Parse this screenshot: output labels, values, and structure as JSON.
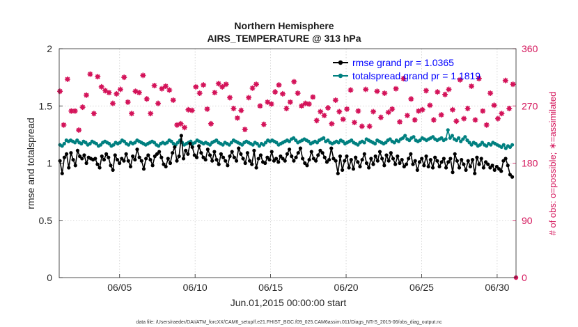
{
  "chart_data": {
    "type": "line",
    "title": "Northern Hemisphere",
    "subtitle": "AIRS_TEMPERATURE @ 313 hPa",
    "xlabel": "Jun.01,2015 00:00:00 start",
    "ylabel": "rmse and totalspread",
    "ylabel_right": "# of obs: o=possible; ∗=assimilated",
    "xlim": [
      1,
      31.25
    ],
    "ylim": [
      0,
      2
    ],
    "ylim_right": [
      0,
      360
    ],
    "x_ticks": [
      5,
      10,
      15,
      20,
      25,
      30
    ],
    "x_tick_labels": [
      "06/05",
      "06/10",
      "06/15",
      "06/20",
      "06/25",
      "06/30"
    ],
    "y_ticks": [
      "0",
      "0.5",
      "1",
      "1.5",
      "2"
    ],
    "y_ticks_right": [
      "0",
      "90",
      "180",
      "270",
      "360"
    ],
    "grid": "dotted",
    "legend_position": "top-right",
    "footnote": "data file: /Users/raeder/DAI/ATM_forcXX/CAM6_setup/f.e21.FHIST_BGC.f09_025.CAM6assim.011/Diags_NTrS_2015-06/obs_diag_output.nc",
    "series": [
      {
        "name": "rmse grand pr = 1.0365",
        "color": "#000000",
        "marker": "circle",
        "axis": "left",
        "values": [
          1.02,
          0.91,
          1.05,
          1.08,
          0.96,
          1.09,
          1.03,
          0.98,
          1.11,
          1.06,
          1.04,
          1.07,
          1.0,
          1.05,
          1.04,
          1.03,
          1.04,
          0.99,
          0.96,
          1.06,
          1.03,
          1.08,
          1.05,
          0.98,
          0.94,
          1.07,
          1.03,
          1.0,
          1.04,
          1.02,
          1.08,
          1.02,
          0.97,
          1.06,
          1.03,
          1.12,
          1.05,
          1.02,
          0.95,
          1.04,
          1.07,
          1.03,
          0.98,
          1.06,
          1.08,
          1.1,
          1.05,
          0.99,
          0.97,
          1.04,
          1.0,
          1.09,
          1.14,
          1.02,
          1.06,
          1.24,
          1.04,
          1.11,
          1.08,
          1.17,
          1.14,
          1.07,
          1.05,
          1.15,
          1.09,
          1.05,
          1.03,
          1.12,
          1.07,
          1.02,
          1.1,
          1.03,
          0.99,
          1.08,
          1.05,
          1.02,
          0.98,
          1.06,
          1.1,
          1.05,
          1.02,
          1.13,
          1.08,
          1.04,
          1.0,
          1.09,
          1.02,
          0.99,
          1.11,
          0.96,
          1.04,
          1.07,
          1.01,
          1.0,
          1.05,
          1.03,
          1.1,
          1.02,
          1.04,
          1.01,
          1.06,
          1.04,
          1.02,
          1.08,
          1.12,
          1.06,
          1.02,
          1.05,
          1.09,
          1.13,
          1.04,
          1.0,
          0.98,
          1.03,
          1.1,
          1.04,
          1.02,
          1.07,
          1.11,
          1.09,
          1.05,
          1.01,
          1.03,
          1.13,
          1.04,
          1.02,
          0.91,
          1.06,
          0.94,
          1.02,
          1.06,
          0.96,
          1.03,
          0.95,
          1.05,
          1.01,
          0.97,
          1.03,
          1.08,
          1.0,
          0.96,
          1.04,
          0.99,
          1.06,
          1.02,
          1.1,
          1.04,
          0.98,
          1.07,
          1.02,
          1.09,
          1.04,
          0.99,
          1.06,
          1.0,
          1.03,
          0.97,
          0.99,
          1.04,
          1.08,
          0.99,
          1.02,
          0.94,
          1.01,
          1.04,
          0.98,
          1.06,
          0.97,
          1.03,
          0.96,
          1.05,
          1.02,
          0.97,
          1.01,
          1.04,
          0.96,
          1.01,
          1.04,
          0.92,
          1.08,
          1.02,
          0.96,
          1.03,
          0.99,
          0.94,
          1.02,
          0.97,
          1.03,
          0.91,
          1.05,
          0.99,
          1.04,
          0.96,
          1.01,
          0.99,
          0.96,
          0.98,
          0.94,
          0.97,
          0.95,
          0.93,
          1.02,
          1.04,
          0.98,
          0.9,
          0.88
        ]
      },
      {
        "name": "totalspread grand pr = 1.1819",
        "color": "#008080",
        "marker": "circle",
        "axis": "left",
        "values": [
          1.16,
          1.15,
          1.17,
          1.2,
          1.19,
          1.2,
          1.19,
          1.18,
          1.2,
          1.18,
          1.17,
          1.19,
          1.18,
          1.16,
          1.17,
          1.19,
          1.18,
          1.17,
          1.15,
          1.16,
          1.18,
          1.19,
          1.18,
          1.17,
          1.15,
          1.16,
          1.18,
          1.17,
          1.18,
          1.2,
          1.19,
          1.17,
          1.16,
          1.18,
          1.17,
          1.18,
          1.2,
          1.19,
          1.18,
          1.17,
          1.16,
          1.17,
          1.18,
          1.19,
          1.18,
          1.16,
          1.15,
          1.17,
          1.18,
          1.17,
          1.18,
          1.2,
          1.19,
          1.17,
          1.16,
          1.18,
          1.2,
          1.18,
          1.16,
          1.17,
          1.18,
          1.19,
          1.17,
          1.18,
          1.2,
          1.19,
          1.18,
          1.17,
          1.18,
          1.17,
          1.16,
          1.18,
          1.19,
          1.2,
          1.18,
          1.17,
          1.16,
          1.18,
          1.17,
          1.16,
          1.18,
          1.2,
          1.19,
          1.18,
          1.17,
          1.16,
          1.18,
          1.19,
          1.18,
          1.17,
          1.16,
          1.18,
          1.17,
          1.15,
          1.17,
          1.16,
          1.18,
          1.2,
          1.19,
          1.2,
          1.19,
          1.18,
          1.16,
          1.17,
          1.18,
          1.19,
          1.2,
          1.19,
          1.21,
          1.22,
          1.2,
          1.18,
          1.19,
          1.2,
          1.21,
          1.2,
          1.19,
          1.17,
          1.18,
          1.19,
          1.18,
          1.2,
          1.21,
          1.22,
          1.19,
          1.2,
          1.18,
          1.17,
          1.18,
          1.19,
          1.18,
          1.2,
          1.19,
          1.17,
          1.18,
          1.19,
          1.2,
          1.18,
          1.17,
          1.16,
          1.18,
          1.19,
          1.18,
          1.21,
          1.2,
          1.19,
          1.18,
          1.17,
          1.2,
          1.19,
          1.18,
          1.17,
          1.18,
          1.2,
          1.21,
          1.19,
          1.18,
          1.2,
          1.19,
          1.21,
          1.22,
          1.24,
          1.21,
          1.2,
          1.22,
          1.23,
          1.2,
          1.19,
          1.2,
          1.22,
          1.21,
          1.2,
          1.21,
          1.22,
          1.23,
          1.21,
          1.2,
          1.21,
          1.22,
          1.2,
          1.21,
          1.29,
          1.22,
          1.24,
          1.21,
          1.2,
          1.22,
          1.19,
          1.21,
          1.23,
          1.2,
          1.18,
          1.16,
          1.18,
          1.17,
          1.15,
          1.16,
          1.18,
          1.16,
          1.15,
          1.17,
          1.16,
          1.18,
          1.17,
          1.16,
          1.15,
          1.14,
          1.16,
          1.13,
          1.15,
          1.14,
          1.16
        ]
      },
      {
        "name": "# of obs",
        "color": "#d4145a",
        "marker": "star",
        "axis": "right",
        "x": [
          1.05,
          1.3,
          1.55,
          1.8,
          2.05,
          2.3,
          2.55,
          2.8,
          3.05,
          3.3,
          3.55,
          3.8,
          4.05,
          4.3,
          4.55,
          4.8,
          5.05,
          5.3,
          5.55,
          5.8,
          6.05,
          6.3,
          6.55,
          6.8,
          7.05,
          7.3,
          7.55,
          7.8,
          8.05,
          8.3,
          8.55,
          8.8,
          9.05,
          9.3,
          9.55,
          9.8,
          10.05,
          10.3,
          10.55,
          10.8,
          11.05,
          11.3,
          11.55,
          11.8,
          12.05,
          12.3,
          12.55,
          12.8,
          13.05,
          13.3,
          13.55,
          13.8,
          14.05,
          14.3,
          14.55,
          14.8,
          15.05,
          15.3,
          15.55,
          15.8,
          16.05,
          16.3,
          16.55,
          16.8,
          17.05,
          17.3,
          17.55,
          17.8,
          18.05,
          18.3,
          18.55,
          18.8,
          19.05,
          19.3,
          19.55,
          19.8,
          20.05,
          20.3,
          20.55,
          20.8,
          21.05,
          21.3,
          21.55,
          21.8,
          22.05,
          22.3,
          22.55,
          22.8,
          23.05,
          23.3,
          23.55,
          23.8,
          24.05,
          24.3,
          24.55,
          24.8,
          25.05,
          25.3,
          25.55,
          25.8,
          26.05,
          26.3,
          26.55,
          26.8,
          27.05,
          27.3,
          27.55,
          27.8,
          28.05,
          28.3,
          28.55,
          28.8,
          29.05,
          29.3,
          29.55,
          29.8,
          30.05,
          30.3,
          30.55,
          30.8,
          31.05
        ],
        "values": [
          293,
          240,
          312,
          262,
          262,
          232,
          268,
          287,
          320,
          258,
          316,
          300,
          294,
          291,
          274,
          289,
          296,
          315,
          276,
          258,
          293,
          291,
          318,
          281,
          258,
          302,
          274,
          297,
          301,
          295,
          279,
          240,
          242,
          236,
          264,
          263,
          300,
          290,
          303,
          265,
          242,
          291,
          305,
          300,
          304,
          283,
          266,
          251,
          263,
          233,
          283,
          298,
          304,
          270,
          241,
          276,
          273,
          292,
          303,
          289,
          266,
          276,
          308,
          290,
          270,
          274,
          273,
          284,
          247,
          261,
          255,
          267,
          242,
          279,
          261,
          249,
          265,
          295,
          244,
          262,
          238,
          296,
          238,
          261,
          293,
          252,
          290,
          260,
          265,
          297,
          245,
          313,
          255,
          281,
          248,
          262,
          264,
          294,
          271,
          248,
          292,
          256,
          288,
          296,
          264,
          246,
          311,
          250,
          266,
          301,
          248,
          313,
          262,
          240,
          290,
          271,
          250,
          258,
          310,
          266,
          304
        ]
      }
    ]
  },
  "legend": {
    "rmse_label": "rmse grand pr = 1.0365",
    "spread_label": "totalspread grand pr = 1.1819"
  }
}
